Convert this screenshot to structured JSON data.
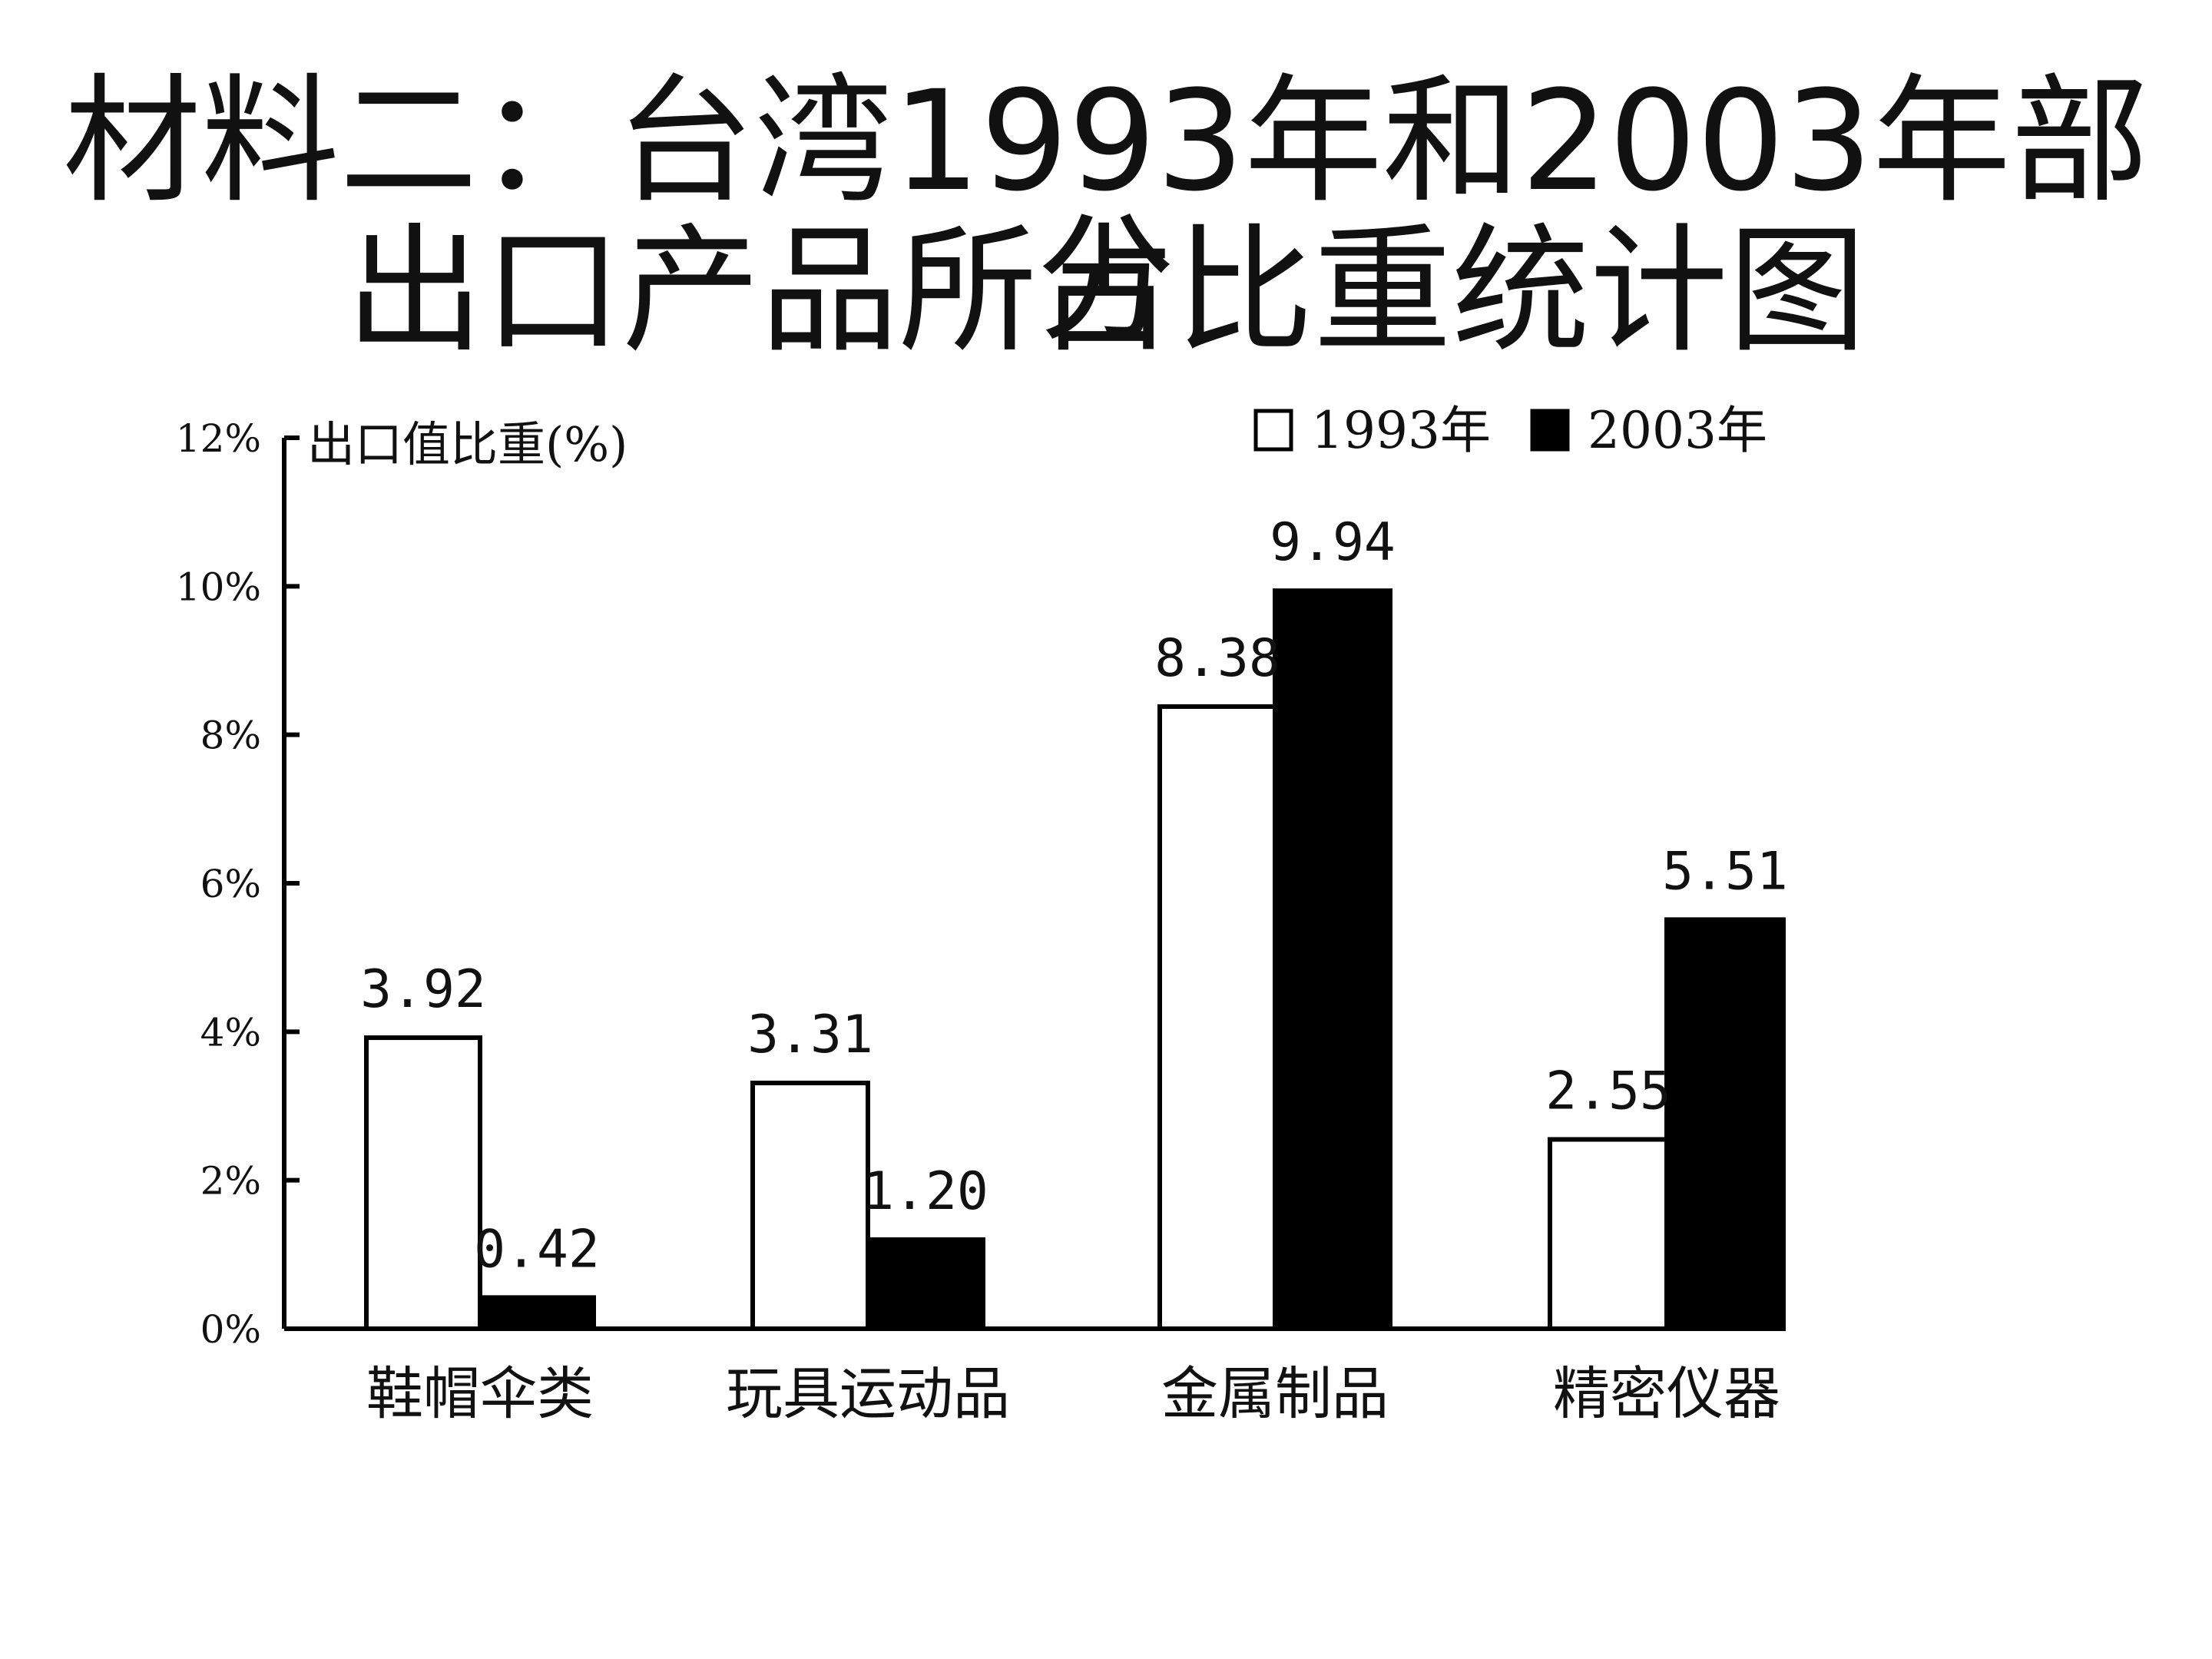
{
  "title_line1": "材料二：台湾1993年和2003年部分",
  "title_line2": "出口产品所占比重统计图",
  "chart_data": {
    "type": "bar",
    "title": "材料二：台湾1993年和2003年部分出口产品所占比重统计图",
    "ylabel": "出口值比重(%)",
    "xlabel": "",
    "categories": [
      "鞋帽伞类",
      "玩具运动品",
      "金属制品",
      "精密仪器"
    ],
    "series": [
      {
        "name": "1993年",
        "values": [
          3.92,
          3.31,
          8.38,
          2.55
        ],
        "labels": [
          "3.92",
          "3.31",
          "8.38",
          "2.55"
        ],
        "color": "#ffffff"
      },
      {
        "name": "2003年",
        "values": [
          0.42,
          1.2,
          9.94,
          5.51
        ],
        "labels": [
          "0.42",
          "1.20",
          "9.94",
          "5.51"
        ],
        "color": "#000000"
      }
    ],
    "ylim": [
      0,
      12
    ],
    "yticks": [
      0,
      2,
      4,
      6,
      8,
      10,
      12
    ],
    "ytick_labels": [
      "0%",
      "2%",
      "4%",
      "6%",
      "8%",
      "10%",
      "12%"
    ],
    "legend_position": "top-right",
    "grid": false
  }
}
